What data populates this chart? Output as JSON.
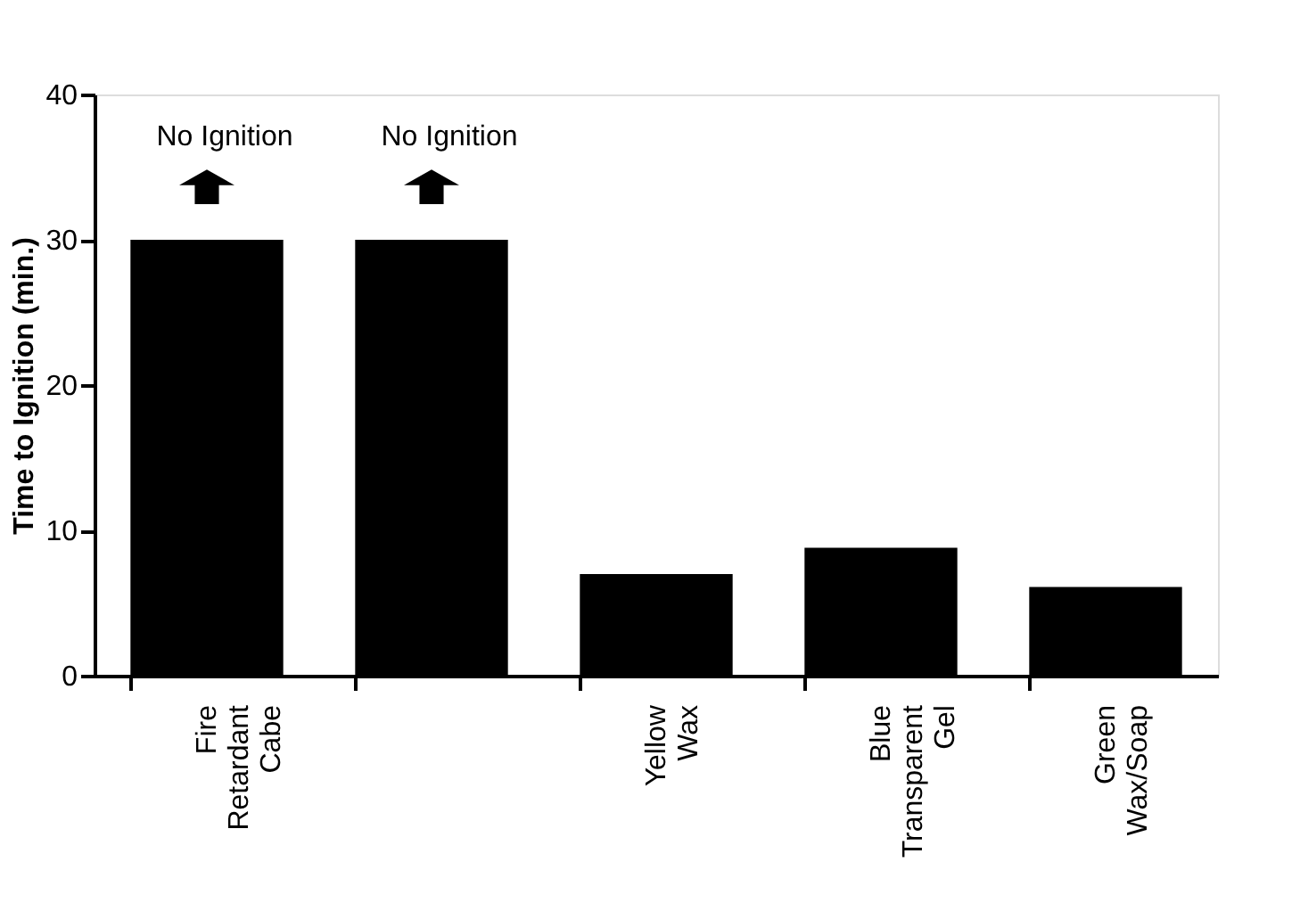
{
  "chart_data": {
    "type": "bar",
    "ylabel": "Time to Ignition (min.)",
    "categories": [
      "Fire Retardant Cabe",
      null,
      "Yellow Wax",
      "Blue Transparent Gel",
      "Green Wax/Soap"
    ],
    "values": [
      30,
      30,
      7,
      8.8,
      6.1
    ],
    "color": "#000000",
    "ylim": [
      0,
      40
    ],
    "yticks": [
      0,
      10,
      20,
      30,
      40
    ],
    "grid": false,
    "annotations": [
      "No Ignition",
      "No Ignition"
    ]
  }
}
